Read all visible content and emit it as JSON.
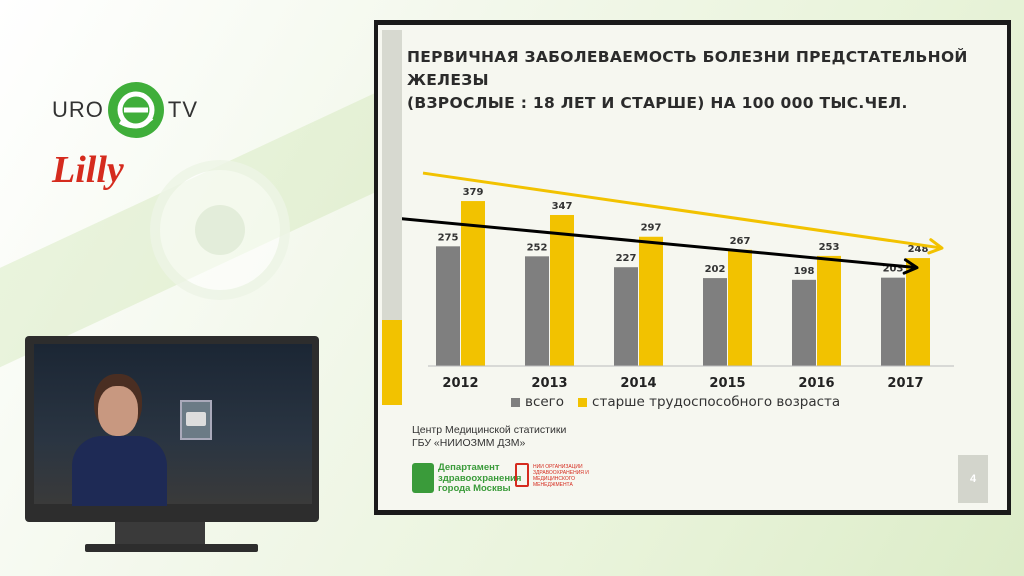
{
  "branding": {
    "uro_left": "URO",
    "uro_right": "TV",
    "sponsor": "Lilly"
  },
  "slide": {
    "title_line1": "ПЕРВИЧНАЯ ЗАБОЛЕВАЕМОСТЬ БОЛЕЗНИ ПРЕДСТАТЕЛЬНОЙ ЖЕЛЕЗЫ",
    "title_line2": "(ВЗРОСЛЫЕ : 18 ЛЕТ И СТАРШЕ) НА 100 000 ТЫС.ЧЕЛ.",
    "source_line1": "Центр Медицинской статистики",
    "source_line2": "ГБУ «НИИОЗММ ДЗМ»",
    "dep_line1": "Департамент",
    "dep_line2": "здравоохранения",
    "dep_line3": "города Москвы",
    "nii_text": "НИИ ОРГАНИЗАЦИИ ЗДРАВООХРАНЕНИЯ И МЕДИЦИНСКОГО МЕНЕДЖМЕНТА",
    "page_number": "4"
  },
  "colors": {
    "series_all": "#7f7f7f",
    "series_older": "#f2c200",
    "trend_all": "#000000",
    "trend_older": "#f2c200"
  },
  "chart_data": {
    "type": "bar",
    "title": "ПЕРВИЧНАЯ ЗАБОЛЕВАЕМОСТЬ БОЛЕЗНИ ПРЕДСТАТЕЛЬНОЙ ЖЕЛЕЗЫ (ВЗРОСЛЫЕ : 18 ЛЕТ И СТАРШЕ) НА 100 000 ТЫС.ЧЕЛ.",
    "categories": [
      "2012",
      "2013",
      "2014",
      "2015",
      "2016",
      "2017"
    ],
    "series": [
      {
        "name": "всего",
        "values": [
          275,
          252,
          227,
          202,
          198,
          203
        ]
      },
      {
        "name": "старше трудоспособного возраста",
        "values": [
          379,
          347,
          297,
          267,
          253,
          248
        ]
      }
    ],
    "ylim": [
      0,
      400
    ],
    "grid": false,
    "legend_position": "bottom",
    "trend_arrows": "decreasing trend arrows over both series"
  }
}
